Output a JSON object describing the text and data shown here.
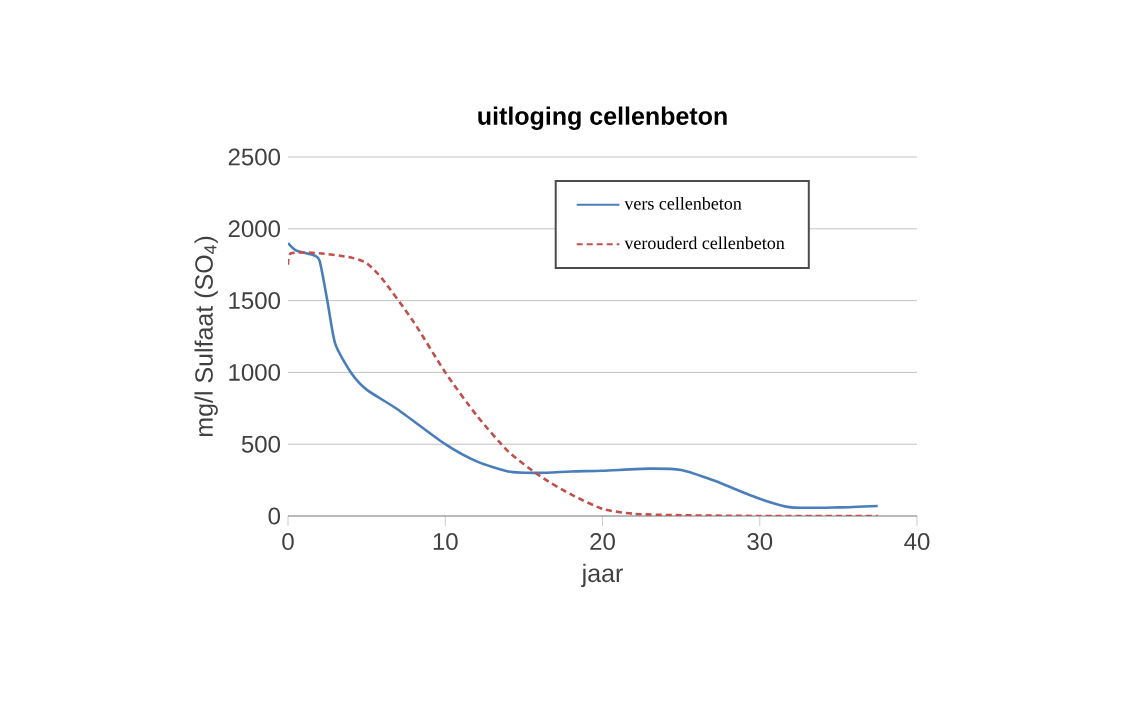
{
  "chart_data": {
    "type": "line",
    "title": "uitloging cellenbeton",
    "xlabel": "jaar",
    "ylabel": "mg/l Sulfaat (SO$_{4}$)",
    "xlim": [
      0,
      40
    ],
    "xticks": [
      0,
      10,
      20,
      30,
      40
    ],
    "ylim": [
      0,
      2500
    ],
    "yticks": [
      0,
      500,
      1000,
      1500,
      2000,
      2500
    ],
    "grid": "y",
    "legend": "top right",
    "series": [
      {
        "name": "vers cellenbeton",
        "color": "#4a7ebb",
        "line_style": "solid",
        "x": [
          0,
          0.5,
          1.5,
          2,
          2.5,
          3,
          4,
          5,
          7,
          10,
          12,
          14,
          16,
          18,
          20,
          23,
          25,
          27,
          30,
          32,
          35,
          37.5
        ],
        "values": [
          1900,
          1850,
          1820,
          1780,
          1500,
          1200,
          1000,
          880,
          740,
          500,
          380,
          310,
          300,
          310,
          315,
          330,
          320,
          250,
          120,
          60,
          60,
          70
        ]
      },
      {
        "name": "verouderd cellenbeton",
        "color": "#c0504d",
        "line_style": "dashed",
        "x": [
          0,
          0.2,
          2,
          4,
          5,
          6,
          8,
          10,
          12,
          14,
          16,
          18,
          20,
          22,
          25,
          30,
          37.5
        ],
        "values": [
          1750,
          1830,
          1830,
          1800,
          1760,
          1650,
          1350,
          1000,
          700,
          450,
          280,
          150,
          50,
          15,
          5,
          0,
          0
        ]
      }
    ]
  }
}
